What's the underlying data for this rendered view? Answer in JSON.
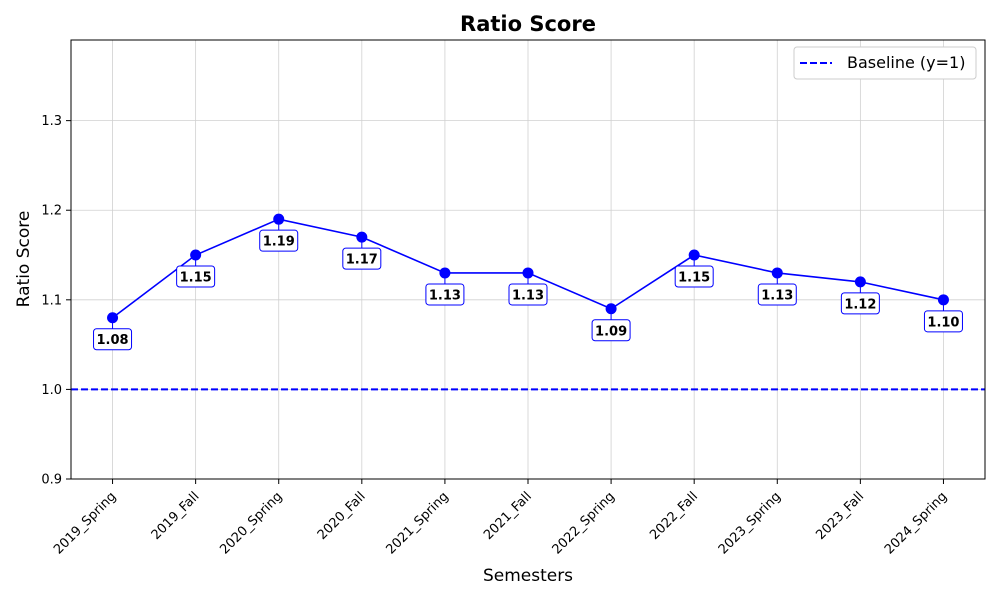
{
  "chart_data": {
    "type": "line",
    "title": "Ratio Score",
    "xlabel": "Semesters",
    "ylabel": "Ratio Score",
    "categories": [
      "2019_Spring",
      "2019_Fall",
      "2020_Spring",
      "2020_Fall",
      "2021_Spring",
      "2021_Fall",
      "2022_Spring",
      "2022_Fall",
      "2023_Spring",
      "2023_Fall",
      "2024_Spring"
    ],
    "series": [
      {
        "values": [
          1.08,
          1.15,
          1.19,
          1.17,
          1.13,
          1.13,
          1.09,
          1.15,
          1.13,
          1.12,
          1.1
        ],
        "data_labels": [
          "1.08",
          "1.15",
          "1.19",
          "1.17",
          "1.13",
          "1.13",
          "1.09",
          "1.15",
          "1.13",
          "1.12",
          "1.10"
        ],
        "color": "#0000ff",
        "marker": "circle"
      }
    ],
    "baseline": {
      "name": "Baseline (y=1)",
      "value": 1.0,
      "color": "#0000ff",
      "style": "dashed"
    },
    "ylim": [
      0.9,
      1.39
    ],
    "yticks": [
      0.9,
      1.0,
      1.1,
      1.2,
      1.3
    ],
    "ytick_labels": [
      "0.9",
      "1.0",
      "1.1",
      "1.2",
      "1.3"
    ],
    "grid": true,
    "legend_position": "top-right"
  }
}
